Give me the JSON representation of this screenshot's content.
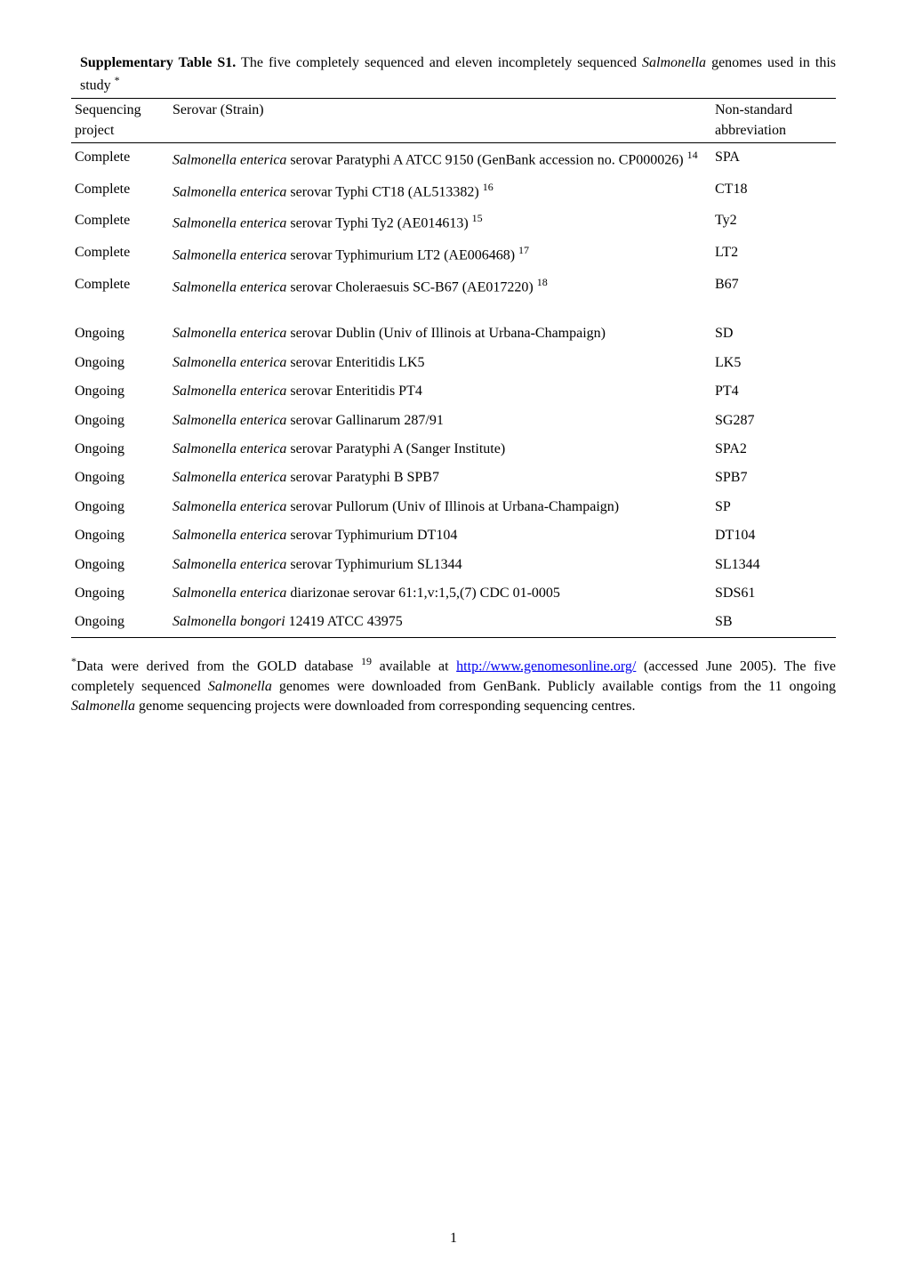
{
  "title": {
    "bold_part": "Supplementary Table S1.",
    "text_part": " The five completely sequenced and eleven incompletely sequenced ",
    "italic_part": "Salmonella",
    "text_end": " genomes used in this study ",
    "sup": "*"
  },
  "headers": {
    "col1": "Sequencing project",
    "col2": "Serovar (Strain)",
    "col3": "Non-standard abbreviation"
  },
  "rows": [
    {
      "seq": "Complete",
      "serovar_italic": "Salmonella enterica",
      "serovar_rest": " serovar Paratyphi A ATCC 9150 (GenBank accession no. CP000026) ",
      "sup": "14",
      "abbr": "SPA"
    },
    {
      "seq": "Complete",
      "serovar_italic": "Salmonella enterica",
      "serovar_rest": " serovar Typhi CT18 (AL513382) ",
      "sup": "16",
      "abbr": "CT18"
    },
    {
      "seq": "Complete",
      "serovar_italic": "Salmonella enterica",
      "serovar_rest": " serovar Typhi Ty2 (AE014613) ",
      "sup": "15",
      "abbr": "Ty2"
    },
    {
      "seq": "Complete",
      "serovar_italic": "Salmonella enterica",
      "serovar_rest": " serovar Typhimurium LT2 (AE006468) ",
      "sup": "17",
      "abbr": "LT2"
    },
    {
      "seq": "Complete",
      "serovar_italic": "Salmonella enterica",
      "serovar_rest": " serovar Choleraesuis SC-B67 (AE017220) ",
      "sup": "18",
      "abbr": "B67"
    }
  ],
  "rows2": [
    {
      "seq": "Ongoing",
      "serovar_italic": "Salmonella enterica",
      "serovar_rest": " serovar Dublin (Univ of Illinois at Urbana-Champaign)",
      "sup": "",
      "abbr": "SD"
    },
    {
      "seq": "Ongoing",
      "serovar_italic": "Salmonella enterica",
      "serovar_rest": " serovar Enteritidis LK5",
      "sup": "",
      "abbr": "LK5"
    },
    {
      "seq": "Ongoing",
      "serovar_italic": "Salmonella enterica",
      "serovar_rest": " serovar Enteritidis PT4",
      "sup": "",
      "abbr": "PT4"
    },
    {
      "seq": "Ongoing",
      "serovar_italic": "Salmonella enterica",
      "serovar_rest": " serovar Gallinarum 287/91",
      "sup": "",
      "abbr": "SG287"
    },
    {
      "seq": "Ongoing",
      "serovar_italic": "Salmonella enterica",
      "serovar_rest": " serovar Paratyphi A (Sanger Institute)",
      "sup": "",
      "abbr": "SPA2"
    },
    {
      "seq": "Ongoing",
      "serovar_italic": "Salmonella enterica",
      "serovar_rest": " serovar Paratyphi B SPB7",
      "sup": "",
      "abbr": "SPB7"
    },
    {
      "seq": "Ongoing",
      "serovar_italic": "Salmonella enterica",
      "serovar_rest": " serovar Pullorum (Univ of Illinois at Urbana-Champaign)",
      "sup": "",
      "abbr": "SP"
    },
    {
      "seq": "Ongoing",
      "serovar_italic": "Salmonella enterica",
      "serovar_rest": " serovar Typhimurium DT104",
      "sup": "",
      "abbr": "DT104"
    },
    {
      "seq": "Ongoing",
      "serovar_italic": "Salmonella enterica",
      "serovar_rest": " serovar Typhimurium SL1344",
      "sup": "",
      "abbr": "SL1344"
    },
    {
      "seq": "Ongoing",
      "serovar_italic": "Salmonella enterica",
      "serovar_rest": " diarizonae serovar 61:1,v:1,5,(7) CDC 01-0005",
      "sup": "",
      "abbr": "SDS61"
    },
    {
      "seq": "Ongoing",
      "serovar_italic": "Salmonella bongori",
      "serovar_rest": " 12419 ATCC 43975",
      "sup": "",
      "abbr": "SB"
    }
  ],
  "footnote": {
    "sup_start": "*",
    "text1": "Data were derived from the GOLD database ",
    "sup_ref": "19",
    "text2": " available at ",
    "link_text": "http://www.genomesonline.org/",
    "text3": " (accessed June 2005). The five completely sequenced ",
    "italic1": "Salmonella",
    "text4": " genomes were downloaded from GenBank. Publicly available contigs from the 11 ongoing ",
    "italic2": "Salmonella",
    "text5": " genome sequencing projects were downloaded from corresponding sequencing centres."
  },
  "page_number": "1"
}
